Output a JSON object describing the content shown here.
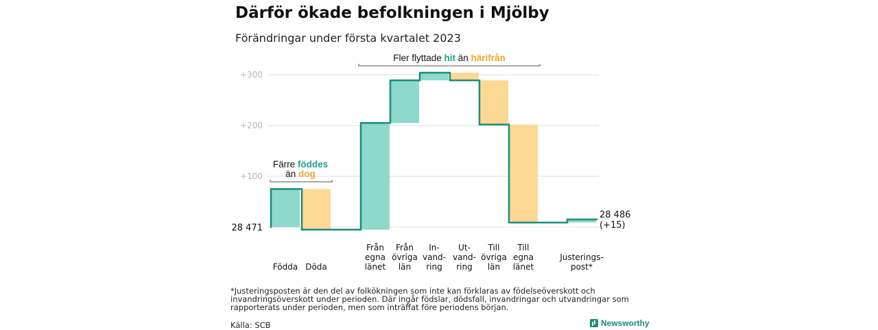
{
  "title": "Därför ökade befolkningen i Mjölby",
  "subtitle": "Förändringar under första kvartalet 2023",
  "colors": {
    "increase": "#8ed8cc",
    "decrease": "#fcd894",
    "line": "#188c79",
    "accent_teal": "#1aa08c",
    "accent_orange": "#f0a62a",
    "grid": "#dddddd",
    "tick": "#b5b5b5"
  },
  "chart_data": {
    "type": "waterfall",
    "y_ticks": [
      {
        "value": 100,
        "label": "+100"
      },
      {
        "value": 200,
        "label": "+200"
      },
      {
        "value": 300,
        "label": "+300"
      }
    ],
    "ylim": [
      -12,
      305
    ],
    "start": {
      "label": "28 471",
      "value": 0
    },
    "end": {
      "label": "28 486",
      "change_label": "(+15)",
      "value": 15
    },
    "steps": [
      {
        "label_lines": [
          "Födda"
        ],
        "delta": 75,
        "from": 0,
        "to": 75
      },
      {
        "label_lines": [
          "Döda"
        ],
        "delta": -80,
        "from": 75,
        "to": -5
      },
      {
        "label_lines": [
          "Från",
          "egna",
          "länet"
        ],
        "delta": 210,
        "from": -5,
        "to": 205
      },
      {
        "label_lines": [
          "Från",
          "övriga",
          "län"
        ],
        "delta": 84,
        "from": 205,
        "to": 289
      },
      {
        "label_lines": [
          "In-",
          "vand-",
          "ring"
        ],
        "delta": 15,
        "from": 289,
        "to": 304
      },
      {
        "label_lines": [
          "Ut-",
          "vand-",
          "ring"
        ],
        "delta": -15,
        "from": 304,
        "to": 289
      },
      {
        "label_lines": [
          "Till",
          "övriga",
          "län"
        ],
        "delta": -87,
        "from": 289,
        "to": 202
      },
      {
        "label_lines": [
          "Till",
          "egna",
          "länet"
        ],
        "delta": -193,
        "from": 202,
        "to": 9
      },
      {
        "label_lines": [
          "Justerings-",
          "post*"
        ],
        "delta": 6,
        "from": 9,
        "to": 15
      }
    ],
    "annotations": {
      "births": {
        "line1": "Färre",
        "line1_highlight": "föddes",
        "line2": "än",
        "line2_highlight": "dog"
      },
      "migration": {
        "text": "Fler flyttade",
        "highlight1": "hit",
        "middle": "än",
        "highlight2": "härifrån"
      }
    }
  },
  "footnote": "*Justeringsposten är den del av folkökningen som inte kan förklaras av födelseöverskott och invandringsöverskott under perioden. Där ingår födslar, dödsfall, invandringar och utvandringar som rapporterats under perioden, men som inträffat före periodens början.",
  "source": "Källa: SCB",
  "brand": "Newsworthy"
}
